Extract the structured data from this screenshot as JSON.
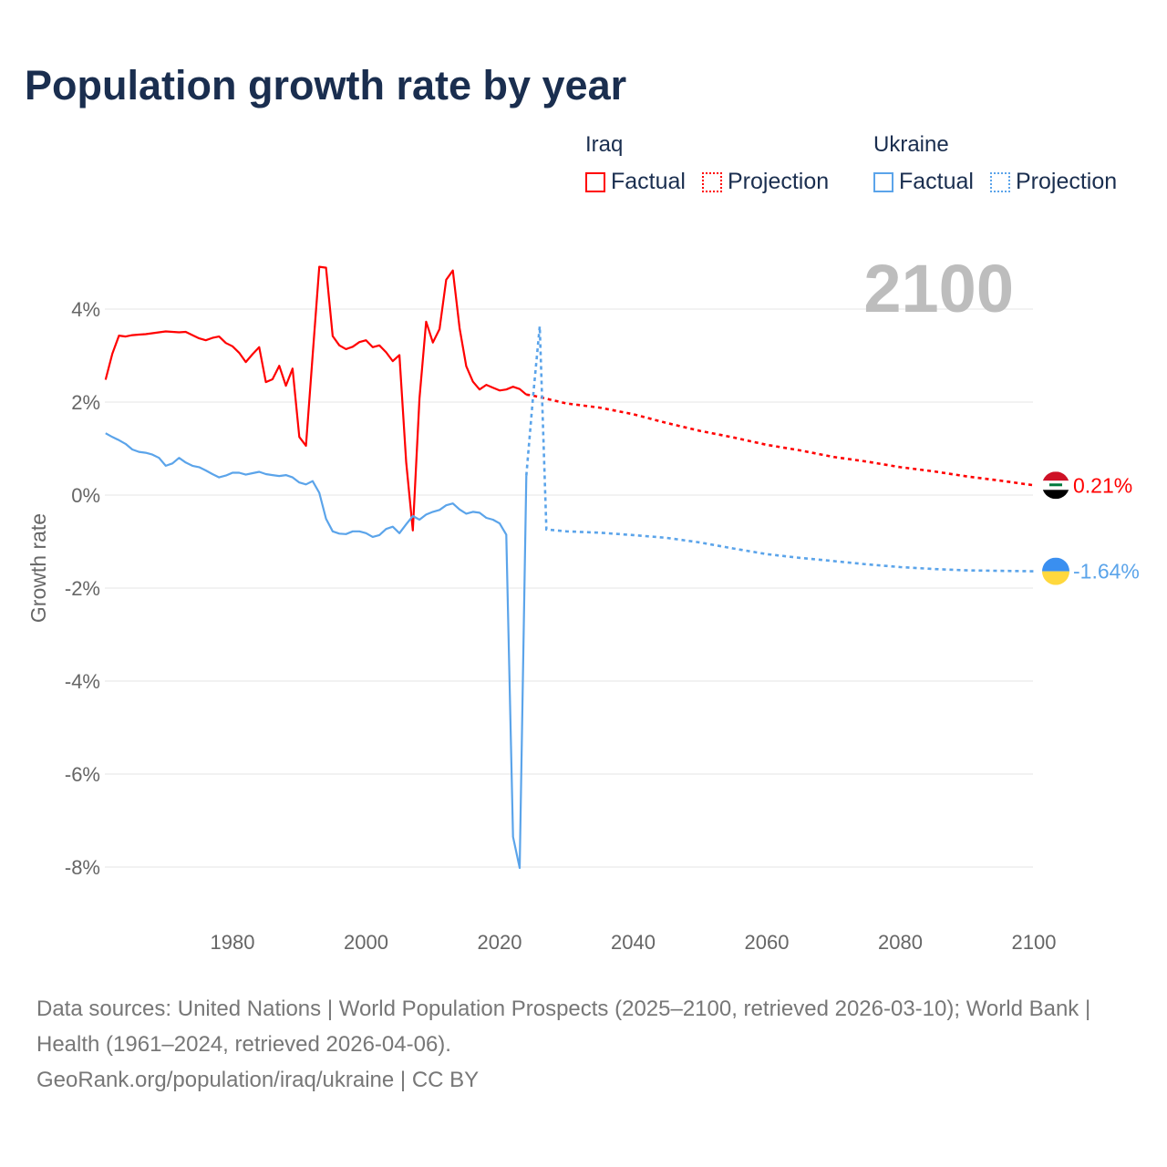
{
  "title": "Population growth rate by year",
  "legend": {
    "groups": [
      {
        "country": "Iraq",
        "factual": "Factual",
        "projection": "Projection",
        "color": "#ff0000"
      },
      {
        "country": "Ukraine",
        "factual": "Factual",
        "projection": "Projection",
        "color": "#5ba4ea"
      }
    ]
  },
  "chart_data": {
    "type": "line",
    "title": "Population growth rate by year",
    "xlabel": "",
    "ylabel": "Growth rate",
    "xlim": [
      1961,
      2100
    ],
    "ylim": [
      -8,
      4
    ],
    "year_overlay": "2100",
    "x_ticks": [
      "1980",
      "2000",
      "2020",
      "2040",
      "2060",
      "2080",
      "2100"
    ],
    "y_ticks": [
      "4%",
      "2%",
      "0%",
      "-2%",
      "-4%",
      "-6%",
      "-8%"
    ],
    "grid": true,
    "series": [
      {
        "name": "Iraq",
        "color": "#ff0000",
        "end_label": "0.21%",
        "factual": {
          "x_start": 1961,
          "values": [
            2.48,
            3.04,
            3.43,
            3.41,
            3.44,
            3.45,
            3.46,
            3.48,
            3.5,
            3.52,
            3.51,
            3.5,
            3.51,
            3.44,
            3.37,
            3.33,
            3.38,
            3.41,
            3.27,
            3.2,
            3.06,
            2.86,
            3.03,
            3.18,
            2.43,
            2.49,
            2.78,
            2.35,
            2.72,
            1.25,
            1.06,
            3.0,
            4.91,
            4.89,
            3.42,
            3.22,
            3.14,
            3.19,
            3.29,
            3.33,
            3.18,
            3.22,
            3.07,
            2.88,
            3.01,
            0.71,
            -0.76,
            2.08,
            3.73,
            3.28,
            3.57,
            4.63,
            4.83,
            3.59,
            2.77,
            2.44,
            2.27,
            2.37,
            2.31,
            2.25,
            2.27,
            2.33,
            2.28,
            2.16
          ]
        },
        "projection": {
          "x": [
            2024,
            2025,
            2030,
            2035,
            2040,
            2045,
            2050,
            2055,
            2060,
            2065,
            2070,
            2075,
            2080,
            2085,
            2090,
            2095,
            2100
          ],
          "values": [
            2.16,
            2.14,
            1.97,
            1.88,
            1.74,
            1.55,
            1.38,
            1.24,
            1.08,
            0.96,
            0.82,
            0.72,
            0.6,
            0.51,
            0.4,
            0.31,
            0.21
          ]
        }
      },
      {
        "name": "Ukraine",
        "color": "#5ba4ea",
        "end_label": "-1.64%",
        "factual": {
          "x_start": 1961,
          "values": [
            1.33,
            1.25,
            1.18,
            1.1,
            0.98,
            0.93,
            0.91,
            0.87,
            0.8,
            0.63,
            0.68,
            0.8,
            0.7,
            0.63,
            0.6,
            0.53,
            0.45,
            0.38,
            0.42,
            0.48,
            0.48,
            0.44,
            0.47,
            0.5,
            0.45,
            0.43,
            0.41,
            0.43,
            0.38,
            0.27,
            0.23,
            0.3,
            0.05,
            -0.51,
            -0.78,
            -0.83,
            -0.84,
            -0.78,
            -0.78,
            -0.82,
            -0.9,
            -0.86,
            -0.73,
            -0.68,
            -0.82,
            -0.63,
            -0.45,
            -0.53,
            -0.42,
            -0.36,
            -0.32,
            -0.22,
            -0.18,
            -0.31,
            -0.4,
            -0.36,
            -0.38,
            -0.49,
            -0.53,
            -0.61,
            -0.85,
            -7.35,
            -8.02,
            0.42
          ]
        },
        "projection": {
          "x": [
            2024,
            2025,
            2026,
            2027,
            2030,
            2035,
            2040,
            2045,
            2050,
            2055,
            2060,
            2065,
            2070,
            2075,
            2080,
            2085,
            2090,
            2095,
            2100
          ],
          "values": [
            0.42,
            2.1,
            3.63,
            -0.74,
            -0.78,
            -0.81,
            -0.86,
            -0.92,
            -1.02,
            -1.15,
            -1.27,
            -1.35,
            -1.42,
            -1.49,
            -1.55,
            -1.59,
            -1.62,
            -1.63,
            -1.64
          ]
        }
      }
    ]
  },
  "footer": {
    "sources": "Data sources: United Nations | World Population Prospects (2025–2100, retrieved 2026-03-10); World Bank | Health (1961–2024, retrieved 2026-04-06).",
    "credit": "GeoRank.org/population/iraq/ukraine | CC BY"
  }
}
